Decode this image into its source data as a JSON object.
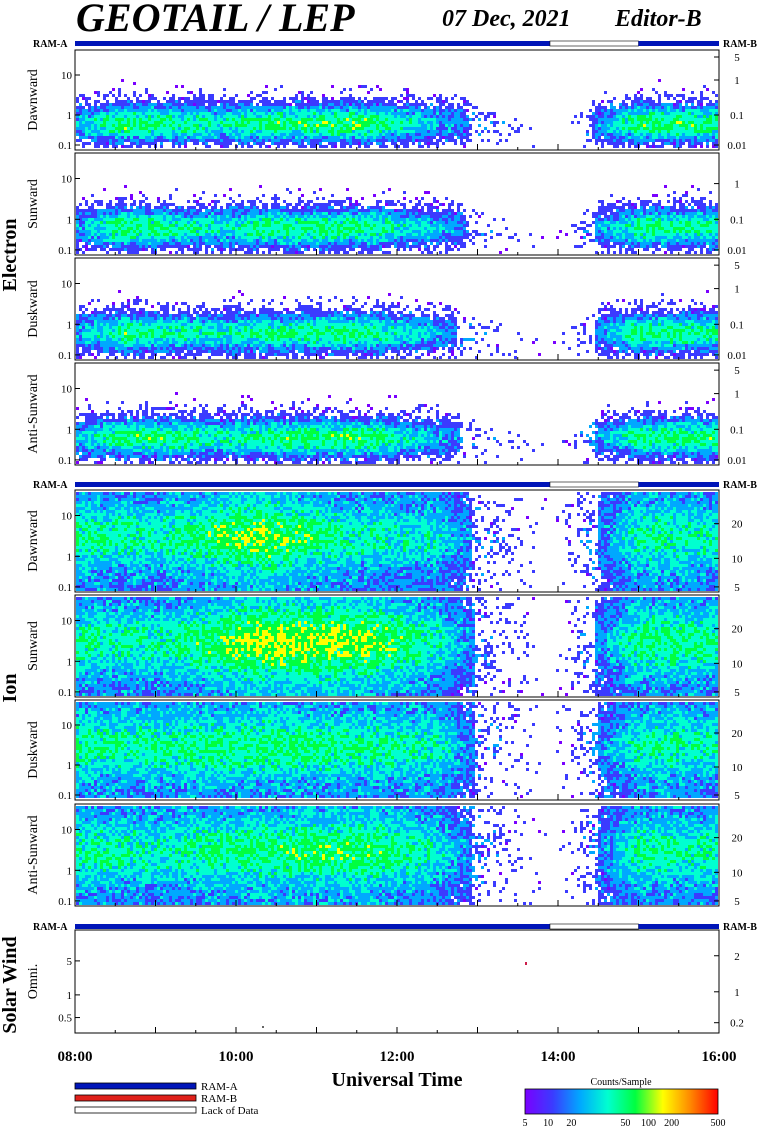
{
  "header": {
    "title": "GEOTAIL / LEP",
    "date": "07 Dec, 2021",
    "editor": "Editor-B"
  },
  "chart_data": {
    "type": "heatmap",
    "xlabel": "Universal Time",
    "x_ticks": [
      "08:00",
      "10:00",
      "12:00",
      "14:00",
      "16:00"
    ],
    "x_range_hours": [
      8,
      16
    ],
    "data_gaps_hours": [
      [
        13.9,
        15.0
      ]
    ],
    "ram_bar_labels": {
      "left": "RAM-A",
      "right": "RAM-B"
    },
    "groups": [
      {
        "label": "Electron",
        "panels": [
          {
            "label": "Dawnward",
            "left_ticks": [
              "10",
              "1",
              "0.1"
            ],
            "right_ticks": [
              "5",
              "1",
              "0.1",
              "0.01"
            ],
            "activity": [
              [
                8.0,
                0.5
              ],
              [
                8.6,
                0.85
              ],
              [
                9.8,
                0.7
              ],
              [
                10.3,
                0.8
              ],
              [
                11.6,
                0.85
              ],
              [
                13.0,
                0.35
              ],
              [
                13.9,
                0.0
              ],
              [
                15.0,
                0.85
              ],
              [
                16.0,
                0.8
              ]
            ]
          },
          {
            "label": "Sunward",
            "left_ticks": [
              "10",
              "1",
              "0.1"
            ],
            "right_ticks": [
              "1",
              "0.1",
              "0.01"
            ],
            "activity": [
              [
                8.0,
                0.45
              ],
              [
                8.6,
                0.85
              ],
              [
                9.8,
                0.65
              ],
              [
                10.3,
                0.8
              ],
              [
                11.6,
                0.8
              ],
              [
                13.0,
                0.35
              ],
              [
                13.9,
                0.0
              ],
              [
                15.0,
                0.8
              ],
              [
                16.0,
                0.75
              ]
            ]
          },
          {
            "label": "Duskward",
            "left_ticks": [
              "10",
              "1",
              "0.1"
            ],
            "right_ticks": [
              "5",
              "1",
              "0.1",
              "0.01"
            ],
            "activity": [
              [
                8.0,
                0.5
              ],
              [
                8.6,
                0.8
              ],
              [
                9.8,
                0.65
              ],
              [
                10.3,
                0.75
              ],
              [
                11.6,
                0.8
              ],
              [
                13.0,
                0.3
              ],
              [
                13.9,
                0.0
              ],
              [
                15.0,
                0.8
              ],
              [
                16.0,
                0.75
              ]
            ]
          },
          {
            "label": "Anti-Sunward",
            "left_ticks": [
              "10",
              "1",
              "0.1"
            ],
            "right_ticks": [
              "5",
              "1",
              "0.1",
              "0.01"
            ],
            "activity": [
              [
                8.0,
                0.5
              ],
              [
                8.6,
                0.85
              ],
              [
                9.8,
                0.7
              ],
              [
                10.3,
                0.8
              ],
              [
                11.6,
                0.85
              ],
              [
                13.0,
                0.3
              ],
              [
                13.9,
                0.0
              ],
              [
                15.0,
                0.8
              ],
              [
                16.0,
                0.8
              ]
            ]
          }
        ]
      },
      {
        "label": "Ion",
        "panels": [
          {
            "label": "Dawnward",
            "left_ticks": [
              "10",
              "1",
              "0.1"
            ],
            "right_ticks": [
              "20",
              "10",
              "5"
            ],
            "activity": [
              [
                8.0,
                0.75
              ],
              [
                9.0,
                0.7
              ],
              [
                10.3,
                0.95
              ],
              [
                11.5,
                0.7
              ],
              [
                12.5,
                0.65
              ],
              [
                13.1,
                0.3
              ],
              [
                13.9,
                0.0
              ],
              [
                15.0,
                0.75
              ],
              [
                16.0,
                0.7
              ]
            ]
          },
          {
            "label": "Sunward",
            "left_ticks": [
              "10",
              "1",
              "0.1"
            ],
            "right_ticks": [
              "20",
              "10",
              "5"
            ],
            "activity": [
              [
                8.0,
                0.75
              ],
              [
                9.0,
                0.7
              ],
              [
                10.3,
                1.0
              ],
              [
                11.6,
                0.95
              ],
              [
                12.5,
                0.7
              ],
              [
                13.1,
                0.3
              ],
              [
                13.9,
                0.0
              ],
              [
                15.0,
                0.8
              ],
              [
                16.0,
                0.75
              ]
            ]
          },
          {
            "label": "Duskward",
            "left_ticks": [
              "10",
              "1",
              "0.1"
            ],
            "right_ticks": [
              "20",
              "10",
              "5"
            ],
            "activity": [
              [
                8.0,
                0.75
              ],
              [
                9.0,
                0.75
              ],
              [
                10.3,
                0.8
              ],
              [
                11.6,
                0.75
              ],
              [
                12.5,
                0.7
              ],
              [
                13.1,
                0.3
              ],
              [
                13.9,
                0.0
              ],
              [
                15.0,
                0.75
              ],
              [
                16.0,
                0.7
              ]
            ]
          },
          {
            "label": "Anti-Sunward",
            "left_ticks": [
              "10",
              "1",
              "0.1"
            ],
            "right_ticks": [
              "20",
              "10",
              "5"
            ],
            "activity": [
              [
                8.0,
                0.75
              ],
              [
                9.0,
                0.7
              ],
              [
                10.3,
                0.8
              ],
              [
                11.6,
                0.85
              ],
              [
                12.5,
                0.65
              ],
              [
                13.1,
                0.3
              ],
              [
                13.9,
                0.0
              ],
              [
                15.0,
                0.75
              ],
              [
                16.0,
                0.7
              ]
            ]
          }
        ]
      },
      {
        "label": "Solar Wind",
        "panels": [
          {
            "label": "Omni.",
            "left_ticks": [
              "5",
              "1",
              "0.5"
            ],
            "right_ticks": [
              "2",
              "1",
              "0.2"
            ],
            "activity": []
          }
        ]
      }
    ],
    "legend": {
      "items": [
        {
          "label": "RAM-A",
          "color": "#0015b8"
        },
        {
          "label": "RAM-B",
          "color": "#e0201a"
        },
        {
          "label": "Lack of Data",
          "color": "#ffffff"
        }
      ]
    },
    "colorbar": {
      "title": "Counts/Sample",
      "ticks": [
        "5",
        "10",
        "20",
        "50",
        "100",
        "200",
        "500"
      ],
      "colors": [
        "#7a00ff",
        "#3b3bff",
        "#00a8ff",
        "#00ffd0",
        "#00ff40",
        "#ffff00",
        "#ff8800",
        "#ff0000"
      ]
    }
  }
}
